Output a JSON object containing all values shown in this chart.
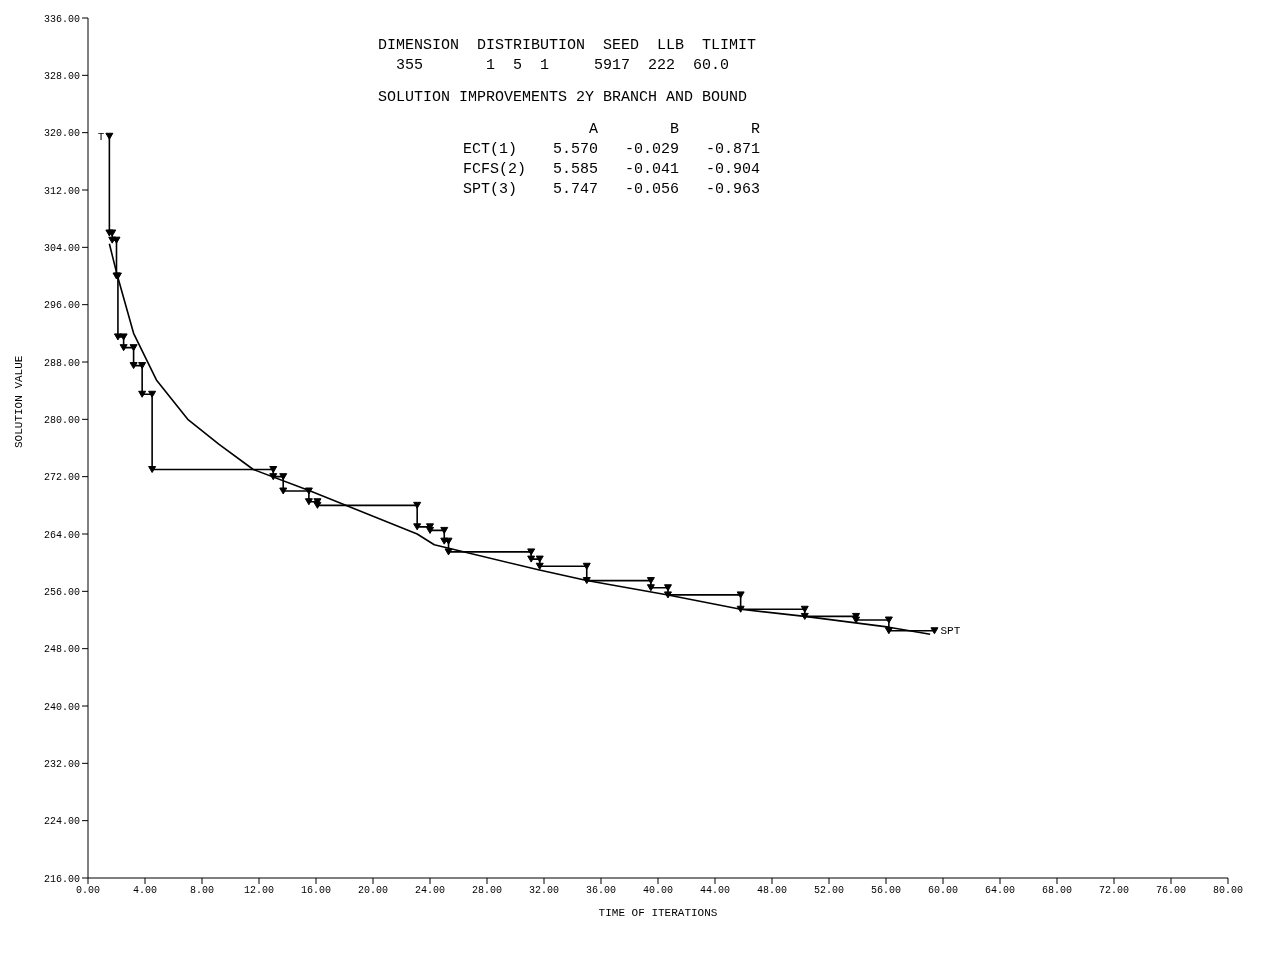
{
  "chart_data": {
    "type": "line",
    "title": "SOLUTION IMPROVEMENTS 2Y BRANCH AND BOUND",
    "xlabel": "TIME OF ITERATIONS",
    "ylabel": "SOLUTION VALUE",
    "annotations": [
      "DIMENSION  DISTRIBUTION  SEED  LLB  TLIMIT",
      "  355       1  5  1     5917  222  60.0",
      "              A        B        R",
      "ECT(1)    5.570   -0.029   -0.871",
      "FCFS(2)   5.585   -0.041   -0.904",
      "SPT(3)    5.747   -0.056   -0.963",
      {
        "text": "T",
        "x": 1.5,
        "y": 319.5
      }
    ],
    "series": [
      {
        "name": "SPT",
        "color": "#000000",
        "marker": "triangle",
        "x": [
          1.5,
          1.5,
          1.7,
          1.7,
          2.0,
          2.0,
          2.1,
          2.1,
          2.5,
          2.5,
          3.2,
          3.2,
          3.8,
          3.8,
          4.5,
          4.5,
          13.0,
          13.0,
          13.7,
          13.7,
          15.5,
          15.5,
          16.1,
          16.1,
          23.1,
          23.1,
          24.0,
          24.0,
          25.0,
          25.0,
          25.3,
          25.3,
          31.1,
          31.1,
          31.7,
          31.7,
          35.0,
          35.0,
          39.5,
          39.5,
          40.7,
          40.7,
          45.8,
          45.8,
          50.3,
          50.3,
          53.9,
          53.9,
          56.2,
          56.2,
          59.4
        ],
        "values": [
          319.5,
          306,
          306,
          305,
          305,
          300,
          300,
          291.5,
          291.5,
          290,
          290,
          287.5,
          287.5,
          283.5,
          283.5,
          273,
          273,
          272,
          272,
          270,
          270,
          268.5,
          268.5,
          268,
          268,
          265,
          265,
          264.5,
          264.5,
          263,
          263,
          261.5,
          261.5,
          260.5,
          260.5,
          259.5,
          259.5,
          257.5,
          257.5,
          256.5,
          256.5,
          255.5,
          255.5,
          253.5,
          253.5,
          252.5,
          252.5,
          252,
          252,
          250.5,
          250.5
        ]
      },
      {
        "color": "#000000",
        "marker": "none",
        "x": [
          1.5,
          2.0,
          3.2,
          4.8,
          7.0,
          9.2,
          11.6,
          15.6,
          23.1,
          24.3,
          31.6,
          35.0,
          40.7,
          45.8,
          50.3,
          56.2,
          59.1
        ],
        "values": [
          304.5,
          300.5,
          292,
          285.5,
          280,
          276.5,
          273,
          270,
          264,
          262.5,
          259,
          257.5,
          255.5,
          253.5,
          252.5,
          251,
          250
        ]
      }
    ],
    "xlim": [
      0,
      80
    ],
    "xticks": [
      {
        "value": 0,
        "label": "0.00"
      },
      {
        "value": 4,
        "label": "4.00"
      },
      {
        "value": 8,
        "label": "8.00"
      },
      {
        "value": 12,
        "label": "12.00"
      },
      {
        "value": 16,
        "label": "16.00"
      },
      {
        "value": 20,
        "label": "20.00"
      },
      {
        "value": 24,
        "label": "24.00"
      },
      {
        "value": 28,
        "label": "28.00"
      },
      {
        "value": 32,
        "label": "32.00"
      },
      {
        "value": 36,
        "label": "36.00"
      },
      {
        "value": 40,
        "label": "40.00"
      },
      {
        "value": 44,
        "label": "44.00"
      },
      {
        "value": 48,
        "label": "48.00"
      },
      {
        "value": 52,
        "label": "52.00"
      },
      {
        "value": 56,
        "label": "56.00"
      },
      {
        "value": 60,
        "label": "60.00"
      },
      {
        "value": 64,
        "label": "64.00"
      },
      {
        "value": 68,
        "label": "68.00"
      },
      {
        "value": 72,
        "label": "72.00"
      },
      {
        "value": 76,
        "label": "76.00"
      },
      {
        "value": 80,
        "label": "80.00"
      }
    ],
    "ylim": [
      216,
      336
    ],
    "yticks": [
      {
        "value": 216,
        "label": "216.00"
      },
      {
        "value": 224,
        "label": "224.00"
      },
      {
        "value": 232,
        "label": "232.00"
      },
      {
        "value": 240,
        "label": "240.00"
      },
      {
        "value": 248,
        "label": "248.00"
      },
      {
        "value": 256,
        "label": "256.00"
      },
      {
        "value": 264,
        "label": "264.00"
      },
      {
        "value": 272,
        "label": "272.00"
      },
      {
        "value": 280,
        "label": "280.00"
      },
      {
        "value": 288,
        "label": "288.00"
      },
      {
        "value": 296,
        "label": "296.00"
      },
      {
        "value": 304,
        "label": "304.00"
      },
      {
        "value": 312,
        "label": "312.00"
      },
      {
        "value": 320,
        "label": "320.00"
      },
      {
        "value": 328,
        "label": "328.00"
      },
      {
        "value": 336,
        "label": "336.00"
      }
    ],
    "grid": false,
    "legend": false,
    "line_style": "solid"
  }
}
